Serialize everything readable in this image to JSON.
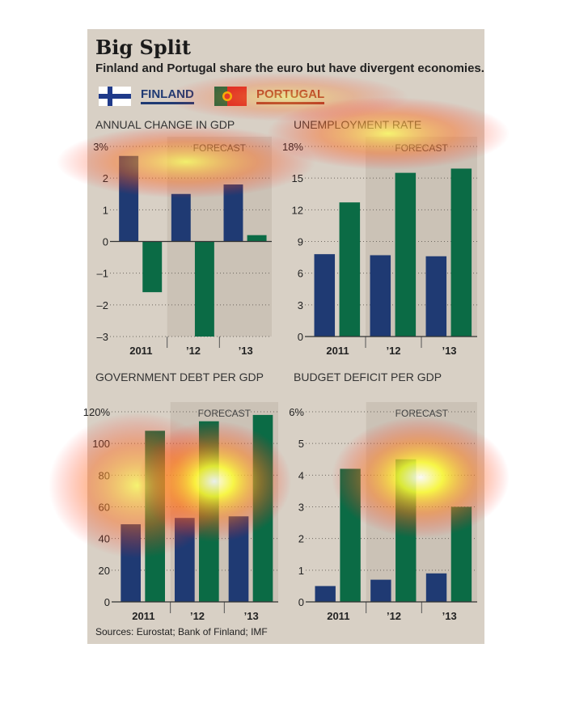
{
  "header": {
    "title": "Big Split",
    "subtitle": "Finland and Portugal share the euro but have divergent economies."
  },
  "legend": {
    "finland": "FINLAND",
    "portugal": "PORTUGAL"
  },
  "colors": {
    "finland": "#1f3a73",
    "portugal": "#0b6b45",
    "background": "#d8d0c5",
    "forecast_shade": "#cbc2b6",
    "finland_legend_underline": "#1f3a73",
    "portugal_legend_underline": "#9e1b24"
  },
  "source": "Sources: Eurostat; Bank of Finland; IMF",
  "chart_data": [
    {
      "type": "bar",
      "title": "ANNUAL CHANGE IN GDP",
      "categories": [
        "2011",
        "’12",
        "’13"
      ],
      "series": [
        {
          "name": "FINLAND",
          "values": [
            2.7,
            1.5,
            1.8
          ]
        },
        {
          "name": "PORTUGAL",
          "values": [
            -1.6,
            -3.0,
            0.2
          ]
        }
      ],
      "ylim": [
        -3,
        3
      ],
      "yticks": [
        -3,
        -2,
        -1,
        0,
        1,
        2,
        3
      ],
      "ytick_labels": [
        "–3",
        "–2",
        "–1",
        "0",
        "1",
        "2",
        "3%"
      ],
      "forecast_label": "FORECAST",
      "forecast_start": 1,
      "grid": true
    },
    {
      "type": "bar",
      "title": "UNEMPLOYMENT RATE",
      "categories": [
        "2011",
        "’12",
        "’13"
      ],
      "series": [
        {
          "name": "FINLAND",
          "values": [
            7.8,
            7.7,
            7.6
          ]
        },
        {
          "name": "PORTUGAL",
          "values": [
            12.7,
            15.5,
            15.9
          ]
        }
      ],
      "ylim": [
        0,
        18
      ],
      "yticks": [
        0,
        3,
        6,
        9,
        12,
        15,
        18
      ],
      "ytick_labels": [
        "0",
        "3",
        "6",
        "9",
        "12",
        "15",
        "18%"
      ],
      "forecast_label": "FORECAST",
      "forecast_start": 1,
      "grid": true
    },
    {
      "type": "bar",
      "title": "GOVERNMENT DEBT PER GDP",
      "categories": [
        "2011",
        "’12",
        "’13"
      ],
      "series": [
        {
          "name": "FINLAND",
          "values": [
            49,
            53,
            54
          ]
        },
        {
          "name": "PORTUGAL",
          "values": [
            108,
            114,
            118
          ]
        }
      ],
      "ylim": [
        0,
        120
      ],
      "yticks": [
        0,
        20,
        40,
        60,
        80,
        100,
        120
      ],
      "ytick_labels": [
        "0",
        "20",
        "40",
        "60",
        "80",
        "100",
        "120%"
      ],
      "forecast_label": "FORECAST",
      "forecast_start": 1,
      "grid": true
    },
    {
      "type": "bar",
      "title": "BUDGET DEFICIT PER GDP",
      "categories": [
        "2011",
        "’12",
        "’13"
      ],
      "series": [
        {
          "name": "FINLAND",
          "values": [
            0.5,
            0.7,
            0.9
          ]
        },
        {
          "name": "PORTUGAL",
          "values": [
            4.2,
            4.5,
            3.0
          ]
        }
      ],
      "ylim": [
        0,
        6
      ],
      "yticks": [
        0,
        1,
        2,
        3,
        4,
        5,
        6
      ],
      "ytick_labels": [
        "0",
        "1",
        "2",
        "3",
        "4",
        "5",
        "6%"
      ],
      "forecast_label": "FORECAST",
      "forecast_start": 1,
      "grid": true
    }
  ]
}
